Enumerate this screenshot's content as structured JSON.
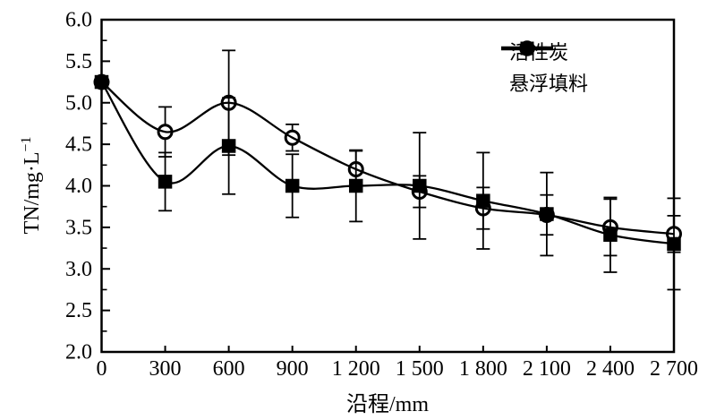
{
  "figure": {
    "background": "#ffffff",
    "ink_color": "#000000"
  },
  "chart_data": {
    "type": "line",
    "title": "",
    "xlabel": "沿程/mm",
    "ylabel": "TN/mg·L⁻¹",
    "ylabel_base": "TN/mg·L",
    "ylabel_exponent": "−1",
    "xlim": [
      0,
      2700
    ],
    "ylim": [
      2.0,
      6.0
    ],
    "grid": false,
    "legend_position": "top-right",
    "x": [
      0,
      300,
      600,
      900,
      1200,
      1500,
      1800,
      2100,
      2400,
      2700
    ],
    "x_tick_labels": [
      "0",
      "300",
      "600",
      "900",
      "1 200",
      "1 500",
      "1 800",
      "2 100",
      "2 400",
      "2 700"
    ],
    "y_ticks": [
      6.0,
      5.5,
      5.0,
      4.5,
      4.0,
      3.5,
      3.0,
      2.5,
      2.0
    ],
    "y_tick_labels": [
      "6.0",
      "5.5",
      "5.0",
      "4.5",
      "4.0",
      "3.5",
      "3.0",
      "2.5",
      "2.0"
    ],
    "y_minor_ticks": [
      5.75,
      5.25,
      4.75,
      4.25,
      3.75,
      3.25,
      2.75,
      2.25
    ],
    "series": [
      {
        "name": "活性炭",
        "marker": "open-circle",
        "line_style": "smooth",
        "values": [
          5.25,
          4.65,
          5.0,
          4.58,
          4.2,
          3.93,
          3.73,
          3.65,
          3.5,
          3.42
        ],
        "errors": [
          0,
          0.3,
          0.63,
          0.16,
          0.22,
          0.19,
          0.25,
          0.24,
          0.34,
          0.22
        ]
      },
      {
        "name": "悬浮填料",
        "marker": "filled-square",
        "line_style": "smooth",
        "values": [
          5.25,
          4.05,
          4.48,
          4.0,
          4.0,
          4.0,
          3.82,
          3.66,
          3.41,
          3.3
        ],
        "errors": [
          0,
          0.35,
          0.58,
          0.38,
          0.43,
          0.64,
          0.58,
          0.5,
          0.45,
          0.55
        ]
      }
    ]
  }
}
